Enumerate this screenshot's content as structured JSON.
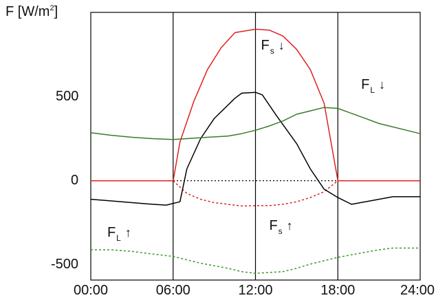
{
  "chart_data": {
    "type": "line",
    "ylabel": {
      "prefix": "F [W/m",
      "sup": "2",
      "suffix": "]"
    },
    "xlim": [
      0,
      24
    ],
    "ylim": [
      -590,
      1000
    ],
    "x_ticks": [
      "00:00",
      "06:00",
      "12:00",
      "18:00",
      "24:00"
    ],
    "x_tick_values": [
      0,
      6,
      12,
      18,
      24
    ],
    "y_ticks": [
      "500",
      "0",
      "-500"
    ],
    "y_tick_values": [
      500,
      0,
      -500
    ],
    "vertical_lines": [
      6,
      12,
      18
    ],
    "zero_line": {
      "color": "#000000",
      "style": "dotted"
    },
    "series": [
      {
        "id": "fs-down",
        "color": "#e02020",
        "style": "solid",
        "points": [
          [
            0,
            0
          ],
          [
            6,
            0
          ],
          [
            6.5,
            230
          ],
          [
            7.5,
            470
          ],
          [
            8.5,
            660
          ],
          [
            9.5,
            790
          ],
          [
            10.5,
            880
          ],
          [
            12,
            900
          ],
          [
            13,
            895
          ],
          [
            14,
            860
          ],
          [
            15,
            780
          ],
          [
            16,
            660
          ],
          [
            17,
            460
          ],
          [
            18,
            0
          ],
          [
            24,
            0
          ]
        ]
      },
      {
        "id": "fs-up",
        "color": "#e02020",
        "style": "dashed",
        "points": [
          [
            6,
            0
          ],
          [
            7,
            -75
          ],
          [
            8,
            -110
          ],
          [
            9,
            -130
          ],
          [
            10,
            -140
          ],
          [
            11,
            -150
          ],
          [
            12,
            -148
          ],
          [
            13,
            -148
          ],
          [
            14,
            -140
          ],
          [
            15,
            -125
          ],
          [
            16,
            -100
          ],
          [
            17,
            -65
          ],
          [
            18,
            0
          ]
        ]
      },
      {
        "id": "net",
        "color": "#000000",
        "style": "solid",
        "points": [
          [
            0,
            -110
          ],
          [
            1.5,
            -120
          ],
          [
            3,
            -130
          ],
          [
            4.5,
            -140
          ],
          [
            5.5,
            -145
          ],
          [
            6.5,
            -125
          ],
          [
            7,
            70
          ],
          [
            8,
            250
          ],
          [
            9,
            370
          ],
          [
            10.5,
            490
          ],
          [
            11,
            520
          ],
          [
            12,
            525
          ],
          [
            12.5,
            510
          ],
          [
            13.5,
            390
          ],
          [
            15,
            220
          ],
          [
            16,
            70
          ],
          [
            17,
            -50
          ],
          [
            18,
            -100
          ],
          [
            19,
            -140
          ],
          [
            20,
            -125
          ],
          [
            21,
            -110
          ],
          [
            22,
            -95
          ],
          [
            23,
            -95
          ],
          [
            24,
            -95
          ]
        ]
      },
      {
        "id": "fl-down",
        "color": "#3a7a2a",
        "style": "solid",
        "points": [
          [
            0,
            285
          ],
          [
            1.5,
            270
          ],
          [
            3,
            258
          ],
          [
            4.5,
            250
          ],
          [
            6,
            245
          ],
          [
            7,
            250
          ],
          [
            8.5,
            258
          ],
          [
            10,
            265
          ],
          [
            11,
            280
          ],
          [
            12,
            300
          ],
          [
            13,
            325
          ],
          [
            14,
            355
          ],
          [
            15,
            395
          ],
          [
            16,
            415
          ],
          [
            17,
            435
          ],
          [
            18,
            430
          ],
          [
            19,
            400
          ],
          [
            20,
            370
          ],
          [
            21,
            340
          ],
          [
            22,
            320
          ],
          [
            23,
            300
          ],
          [
            24,
            280
          ]
        ]
      },
      {
        "id": "fl-up",
        "color": "#3a9a2a",
        "style": "dashed",
        "points": [
          [
            0,
            -410
          ],
          [
            1.5,
            -410
          ],
          [
            3,
            -420
          ],
          [
            4.5,
            -435
          ],
          [
            6,
            -450
          ],
          [
            7,
            -470
          ],
          [
            8,
            -490
          ],
          [
            9,
            -505
          ],
          [
            10,
            -520
          ],
          [
            11,
            -540
          ],
          [
            12,
            -550
          ],
          [
            13,
            -545
          ],
          [
            14,
            -540
          ],
          [
            15,
            -520
          ],
          [
            16,
            -495
          ],
          [
            17,
            -475
          ],
          [
            18,
            -455
          ],
          [
            19,
            -440
          ],
          [
            20,
            -425
          ],
          [
            21,
            -410
          ],
          [
            22,
            -400
          ],
          [
            23,
            -400
          ],
          [
            24,
            -400
          ]
        ]
      }
    ],
    "annotations": [
      {
        "id": "fs-down",
        "main": "F",
        "sub": "s",
        "arrow": "↓",
        "x": 12.7,
        "y": 800
      },
      {
        "id": "fl-down",
        "main": "F",
        "sub": "L",
        "arrow": "↓",
        "x": 20.0,
        "y": 570
      },
      {
        "id": "fl-up",
        "main": "F",
        "sub": "L",
        "arrow": "↑",
        "x": 1.5,
        "y": -310
      },
      {
        "id": "fs-up",
        "main": "F",
        "sub": "s",
        "arrow": "↑",
        "x": 13.3,
        "y": -270
      }
    ]
  }
}
